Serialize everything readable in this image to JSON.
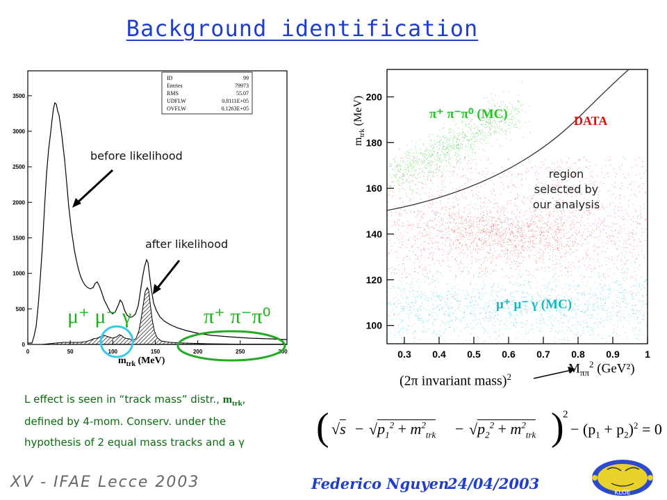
{
  "title": "Background identification",
  "histogram": {
    "stats": [
      [
        "ID",
        "99"
      ],
      [
        "Entries",
        "79973"
      ],
      [
        "RMS",
        "55.07"
      ],
      [
        "UDFLW",
        "0.8111E+05"
      ],
      [
        "OVFLW",
        "0.1263E+05"
      ]
    ],
    "yticks": [
      "0",
      "500",
      "1000",
      "1500",
      "2000",
      "2500",
      "3000",
      "3500"
    ],
    "xticks": [
      "0",
      "50",
      "100",
      "150",
      "200",
      "250",
      "300"
    ],
    "xlabel_main": "m",
    "xlabel_sub": "trk",
    "xlabel_unit": "(MeV)",
    "label_before": "before likelihood",
    "label_after": "after likelihood",
    "mu_label": "μ⁺ μ⁻ γ",
    "pi_label": "π⁺ π⁻π⁰"
  },
  "scatter": {
    "yticks": [
      "100",
      "120",
      "140",
      "160",
      "180",
      "200"
    ],
    "xticks": [
      "0.3",
      "0.4",
      "0.5",
      "0.6",
      "0.7",
      "0.8",
      "0.9",
      "1"
    ],
    "ylabel_main": "m",
    "ylabel_sub": "trk",
    "ylabel_unit": "(MeV)",
    "xlabel_main": "M",
    "xlabel_sub": "ππ",
    "xlabel_sup": "2",
    "xlabel_unit": "(GeV²)",
    "pi_mc": "π⁺ π⁻π⁰ (MC)",
    "data_label": "DATA",
    "region": [
      "region",
      "selected by",
      "our analysis"
    ],
    "mu_mc": "μ⁺ μ⁻ γ (MC)",
    "invariant_note": "(2π invariant mass)",
    "invariant_sup": "2"
  },
  "note": {
    "line1_a": "L effect is seen in “track mass” distr., ",
    "line1_m": "m",
    "line1_sub": "trk",
    "line1_end": ",",
    "line2": "defined by 4-mom. Conserv. under the",
    "line3": "hypothesis of 2 equal mass tracks and a γ"
  },
  "formula": {
    "s": "s",
    "minus": "−",
    "p1": "p",
    "p2": "p",
    "one": "1",
    "two": "2",
    "sq": "2",
    "plus": "+",
    "m": "m",
    "trk": "trk",
    "tail": "− (p",
    "p1_sub": "1",
    "plus2": " + p",
    "p2_sub": "2",
    "close": ")",
    "eq": " = 0"
  },
  "footer": {
    "conference": "XV - IFAE Lecce 2003",
    "author": "Federico Nguyen",
    "date": "24/04/2003",
    "logo_text": "KLOE"
  },
  "colors": {
    "title": "#1f3fc8",
    "note_green": "#0a6a10",
    "mu_green": "#18b418",
    "pi_mc": "#22c822",
    "data_red": "#e01010",
    "mu_mc_cyan": "#10b8c8",
    "circle_cyan": "#38c8e8",
    "ellipse_green": "#22aa22"
  }
}
